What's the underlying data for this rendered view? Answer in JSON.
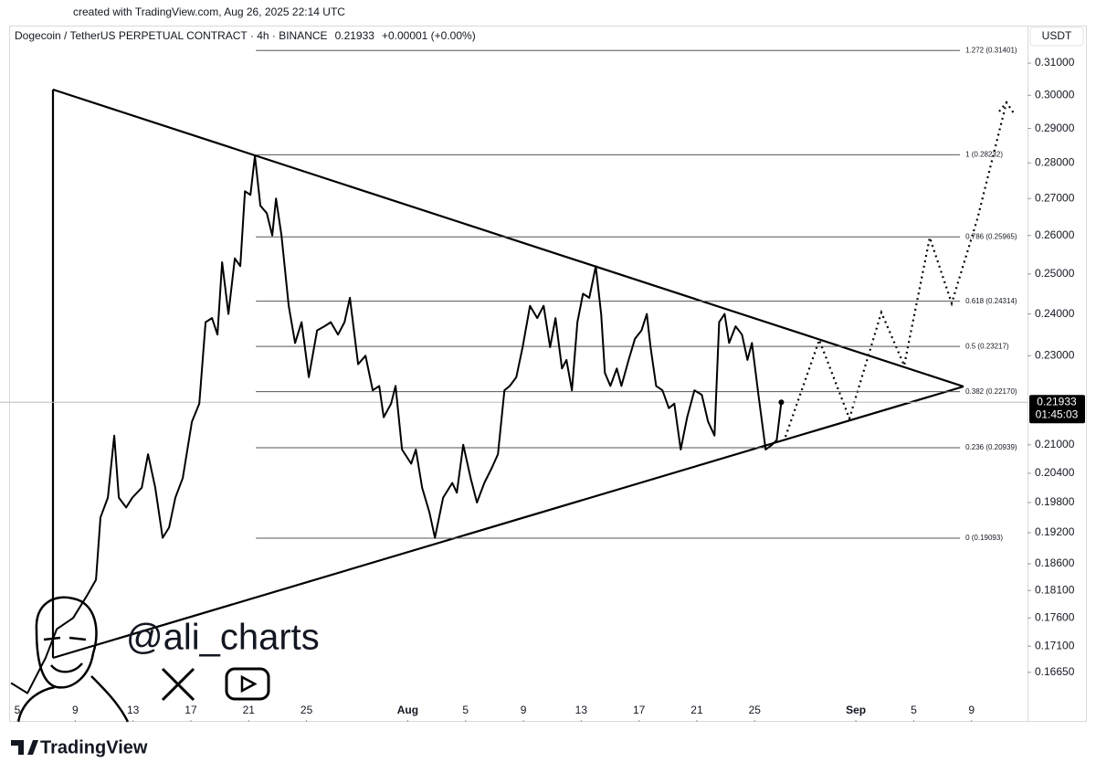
{
  "header": {
    "created": "created with TradingView.com, Aug 26, 2025 22:14 UTC"
  },
  "chart_data": {
    "type": "line",
    "title": "Dogecoin / TetherUS PERPETUAL CONTRACT · 4h · BINANCE",
    "change": "+0.00001 (+0.00%)",
    "currency": "USDT",
    "color": "#000000",
    "log_scale": true,
    "xlim": [
      4.43,
      74.87
    ],
    "ylim": [
      0.1583,
      0.3215
    ],
    "xticks": [
      5,
      9,
      13,
      17,
      21,
      25,
      {
        "value": 32,
        "label": "Aug"
      },
      {
        "value": 36,
        "label": "5"
      },
      {
        "value": 40,
        "label": "9"
      },
      {
        "value": 44,
        "label": "13"
      },
      {
        "value": 48,
        "label": "17"
      },
      {
        "value": 52,
        "label": "21"
      },
      {
        "value": 56,
        "label": "25"
      },
      {
        "value": 63,
        "label": "Sep"
      },
      {
        "value": 67,
        "label": "5"
      },
      {
        "value": 71,
        "label": "9"
      }
    ],
    "yticks": [
      {
        "value": 0.31,
        "label": "0.31000"
      },
      {
        "value": 0.3,
        "label": "0.30000"
      },
      {
        "value": 0.29,
        "label": "0.29000"
      },
      {
        "value": 0.28,
        "label": "0.28000"
      },
      {
        "value": 0.27,
        "label": "0.27000"
      },
      {
        "value": 0.26,
        "label": "0.26000"
      },
      {
        "value": 0.25,
        "label": "0.25000"
      },
      {
        "value": 0.24,
        "label": "0.24000"
      },
      {
        "value": 0.23,
        "label": "0.23000"
      },
      {
        "value": 0.21,
        "label": "0.21000"
      },
      {
        "value": 0.204,
        "label": "0.20400"
      },
      {
        "value": 0.198,
        "label": "0.19800"
      },
      {
        "value": 0.192,
        "label": "0.19200"
      },
      {
        "value": 0.186,
        "label": "0.18600"
      },
      {
        "value": 0.181,
        "label": "0.18100"
      },
      {
        "value": 0.176,
        "label": "0.17600"
      },
      {
        "value": 0.171,
        "label": "0.17100"
      },
      {
        "value": 0.1665,
        "label": "0.16650"
      }
    ],
    "fib_levels": [
      {
        "value": 0.31401,
        "label": "1.272 (0.31401)"
      },
      {
        "value": 0.28232,
        "label": "1 (0.28232)"
      },
      {
        "value": 0.25965,
        "label": "0.786 (0.25965)"
      },
      {
        "value": 0.24314,
        "label": "0.618 (0.24314)"
      },
      {
        "value": 0.23217,
        "label": "0.5 (0.23217)"
      },
      {
        "value": 0.2217,
        "label": "0.382 (0.22170)"
      },
      {
        "value": 0.20939,
        "label": "0.236 (0.20939)"
      },
      {
        "value": 0.19093,
        "label": "0 (0.19093)"
      }
    ],
    "last_price": {
      "value": 0.21933,
      "label": "0.21933"
    },
    "countdown": "01:45:03",
    "x": [
      4.56,
      5.7,
      6.96,
      7.72,
      8.86,
      9.8,
      10.44,
      10.75,
      11.26,
      11.7,
      12.02,
      12.52,
      12.96,
      13.6,
      14.04,
      14.54,
      15.05,
      15.49,
      15.93,
      16.44,
      17.07,
      17.58,
      18.02,
      18.46,
      18.84,
      19.16,
      19.6,
      20.04,
      20.42,
      20.74,
      21.12,
      21.43,
      21.81,
      22.25,
      22.63,
      22.89,
      23.27,
      23.77,
      24.21,
      24.66,
      25.16,
      25.73,
      26.24,
      26.68,
      27.18,
      27.63,
      28.0,
      28.57,
      29.08,
      29.58,
      30.03,
      30.34,
      30.85,
      31.16,
      31.61,
      32.24,
      32.56,
      33.0,
      33.5,
      33.88,
      34.45,
      35.08,
      35.4,
      35.84,
      36.35,
      36.79,
      37.3,
      37.8,
      38.24,
      38.69,
      39.06,
      39.51,
      39.95,
      40.46,
      40.96,
      41.4,
      41.85,
      42.22,
      42.67,
      42.98,
      43.36,
      43.74,
      44.12,
      44.56,
      45.01,
      45.38,
      45.64,
      46.02,
      46.46,
      46.78,
      47.28,
      47.72,
      48.17,
      48.54,
      48.8,
      49.18,
      49.62,
      50.06,
      50.44,
      50.88,
      51.33,
      51.83,
      52.34,
      52.78,
      53.22,
      53.54,
      53.92,
      54.23,
      54.68,
      55.12,
      55.5,
      55.81,
      56.26,
      56.76,
      57.2,
      57.52,
      57.84
    ],
    "values": [
      0.1647,
      0.163,
      0.169,
      0.174,
      0.176,
      0.18,
      0.183,
      0.195,
      0.199,
      0.212,
      0.199,
      0.197,
      0.199,
      0.201,
      0.208,
      0.201,
      0.191,
      0.193,
      0.199,
      0.203,
      0.215,
      0.219,
      0.238,
      0.239,
      0.235,
      0.253,
      0.24,
      0.254,
      0.252,
      0.272,
      0.271,
      0.282,
      0.268,
      0.266,
      0.26,
      0.27,
      0.26,
      0.242,
      0.233,
      0.238,
      0.225,
      0.236,
      0.237,
      0.238,
      0.235,
      0.238,
      0.244,
      0.228,
      0.23,
      0.222,
      0.223,
      0.216,
      0.219,
      0.223,
      0.209,
      0.206,
      0.209,
      0.201,
      0.196,
      0.191,
      0.199,
      0.202,
      0.2,
      0.21,
      0.203,
      0.198,
      0.202,
      0.205,
      0.208,
      0.222,
      0.223,
      0.225,
      0.232,
      0.242,
      0.239,
      0.242,
      0.232,
      0.239,
      0.227,
      0.229,
      0.222,
      0.238,
      0.245,
      0.244,
      0.252,
      0.24,
      0.226,
      0.223,
      0.227,
      0.223,
      0.229,
      0.234,
      0.236,
      0.24,
      0.232,
      0.223,
      0.222,
      0.218,
      0.219,
      0.209,
      0.216,
      0.222,
      0.221,
      0.215,
      0.212,
      0.238,
      0.24,
      0.233,
      0.237,
      0.235,
      0.229,
      0.233,
      0.221,
      0.209,
      0.21,
      0.211,
      0.21933
    ]
  },
  "watermark": {
    "handle": "@ali_charts"
  },
  "footer": {
    "brand": "TradingView"
  }
}
